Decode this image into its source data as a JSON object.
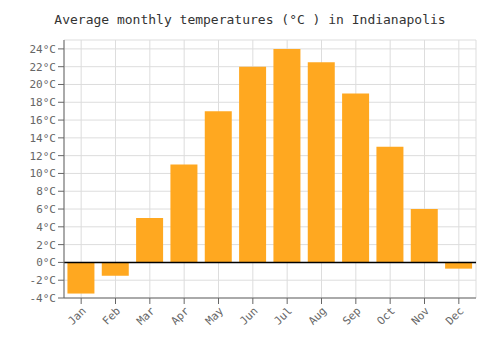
{
  "chart_data": {
    "type": "bar",
    "title": "Average monthly temperatures (°C ) in Indianapolis",
    "categories": [
      "Jan",
      "Feb",
      "Mar",
      "Apr",
      "May",
      "Jun",
      "Jul",
      "Aug",
      "Sep",
      "Oct",
      "Nov",
      "Dec"
    ],
    "values": [
      -3.5,
      -1.5,
      5.0,
      11.0,
      17.0,
      22.0,
      24.0,
      22.5,
      19.0,
      13.0,
      6.0,
      -0.7
    ],
    "color": "#FFA820",
    "ylim": [
      -4,
      25
    ],
    "yticks": [
      {
        "value": -4,
        "label": "-4°C"
      },
      {
        "value": -2,
        "label": "-2°C"
      },
      {
        "value": 0,
        "label": "0°C"
      },
      {
        "value": 2,
        "label": "2°C"
      },
      {
        "value": 4,
        "label": "4°C"
      },
      {
        "value": 6,
        "label": "6°C"
      },
      {
        "value": 8,
        "label": "8°C"
      },
      {
        "value": 10,
        "label": "10°C"
      },
      {
        "value": 12,
        "label": "12°C"
      },
      {
        "value": 14,
        "label": "14°C"
      },
      {
        "value": 16,
        "label": "16°C"
      },
      {
        "value": 18,
        "label": "18°C"
      },
      {
        "value": 20,
        "label": "20°C"
      },
      {
        "value": 22,
        "label": "22°C"
      },
      {
        "value": 24,
        "label": "24°C"
      }
    ],
    "grid": true
  }
}
